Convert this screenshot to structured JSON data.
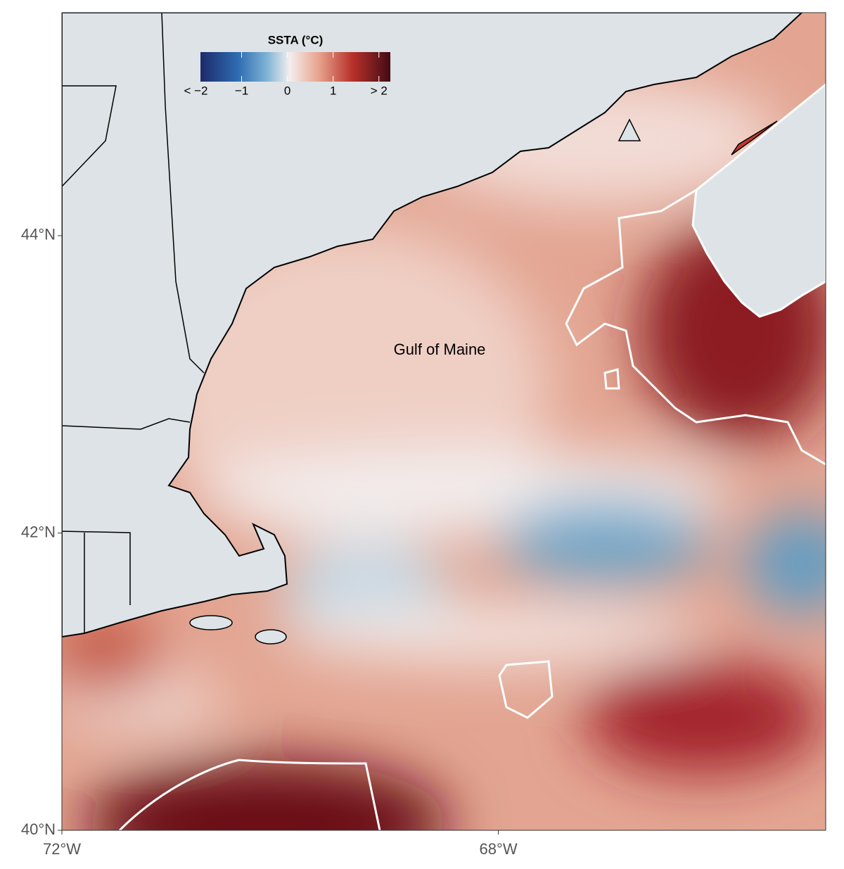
{
  "map": {
    "annotation": "Gulf of Maine",
    "xlim": [
      -72,
      -65
    ],
    "ylim": [
      40,
      45.5
    ],
    "lat_ticks": [
      {
        "value": 40,
        "label": "40°N"
      },
      {
        "value": 42,
        "label": "42°N"
      },
      {
        "value": 44,
        "label": "44°N"
      }
    ],
    "lon_ticks": [
      {
        "value": -72,
        "label": "72°W"
      },
      {
        "value": -68,
        "label": "68°W"
      }
    ],
    "legend": {
      "title": "SSTA (°C)",
      "lim": [
        -1.9,
        2.25
      ],
      "ticks": [
        {
          "value": -2,
          "label": "< −2"
        },
        {
          "value": -1,
          "label": "−1"
        },
        {
          "value": 0,
          "label": "0"
        },
        {
          "value": 1,
          "label": "1"
        },
        {
          "value": 2,
          "label": "> 2"
        }
      ]
    }
  }
}
